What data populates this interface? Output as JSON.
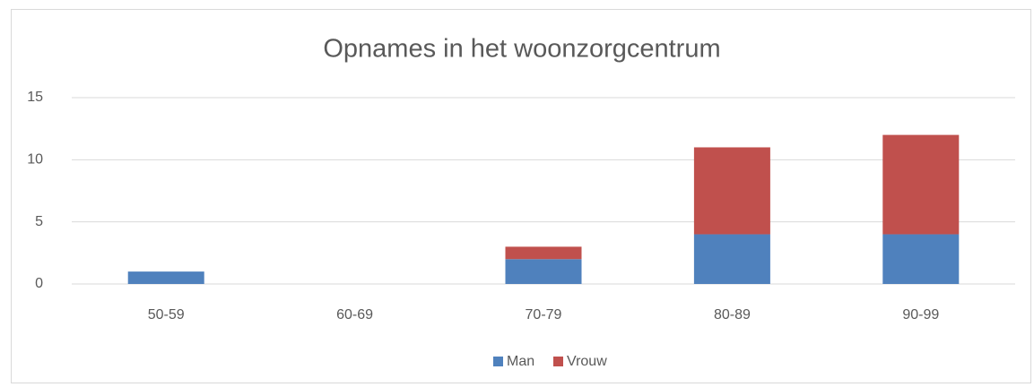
{
  "chart_data": {
    "type": "stacked_bar",
    "title": "Opnames in het woonzorgcentrum",
    "categories": [
      "50-59",
      "60-69",
      "70-79",
      "80-89",
      "90-99"
    ],
    "series": [
      {
        "name": "Man",
        "color": "#4f81bd",
        "values": [
          1,
          0,
          2,
          4,
          4
        ]
      },
      {
        "name": "Vrouw",
        "color": "#c0504d",
        "values": [
          0,
          0,
          1,
          7,
          8
        ]
      }
    ],
    "ylim": [
      0,
      15
    ],
    "yticks": [
      0,
      5,
      10,
      15
    ],
    "grid": true,
    "legend": "bottom"
  }
}
